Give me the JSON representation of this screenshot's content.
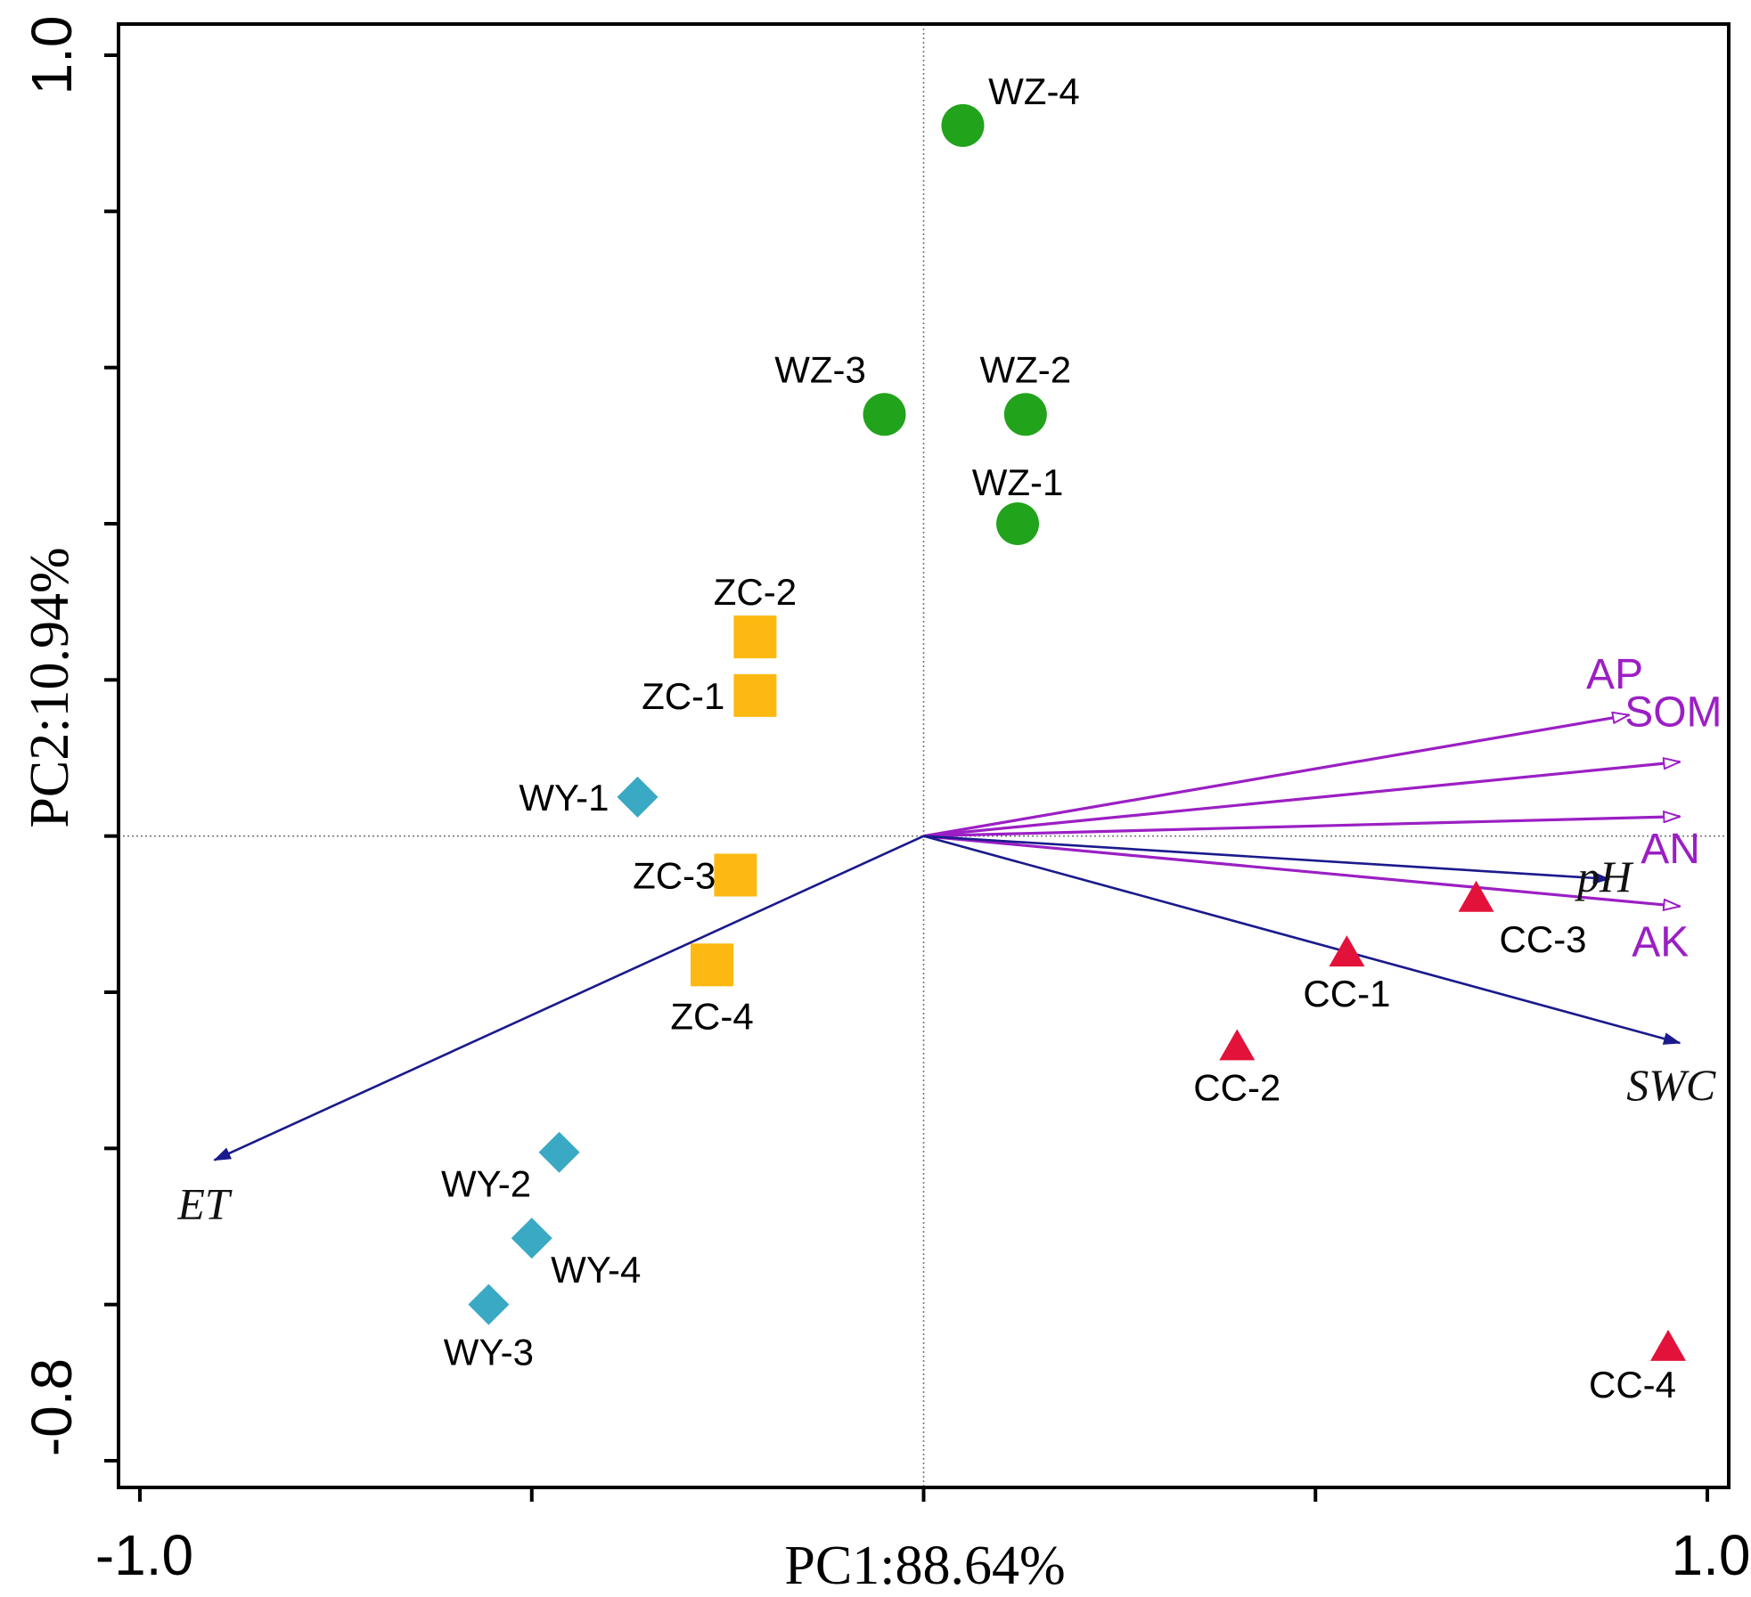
{
  "chart_data": {
    "type": "scatter",
    "subtype": "PCA biplot",
    "title": "",
    "xlabel": "PC1:88.64%",
    "ylabel": "PC2:10.94%",
    "xlim": [
      -1.0,
      1.0
    ],
    "ylim": [
      -0.8,
      1.0
    ],
    "x_tick_labels": [
      "-1.0",
      "1.0"
    ],
    "y_tick_labels": [
      "1.0",
      "-0.8"
    ],
    "x_ticks": [
      -1.0,
      -0.5,
      0.0,
      0.5,
      1.0
    ],
    "y_ticks": [
      -0.8,
      -0.6,
      -0.4,
      -0.2,
      0.0,
      0.2,
      0.4,
      0.6,
      0.8,
      1.0
    ],
    "reference_lines": {
      "x": 0,
      "y": 0
    },
    "colors": {
      "WZ": "#22a31c",
      "ZC": "#fdb911",
      "WY": "#3aa9c4",
      "CC": "#e3123a",
      "soil_arrow": "#9b1fc4",
      "phys_arrow": "#1a1a8c"
    },
    "series": [
      {
        "name": "WZ",
        "marker": "circle",
        "points": [
          {
            "label": "WZ-1",
            "x": 0.12,
            "y": 0.4
          },
          {
            "label": "WZ-2",
            "x": 0.13,
            "y": 0.54
          },
          {
            "label": "WZ-3",
            "x": -0.05,
            "y": 0.54
          },
          {
            "label": "WZ-4",
            "x": 0.05,
            "y": 0.91
          }
        ]
      },
      {
        "name": "ZC",
        "marker": "square",
        "points": [
          {
            "label": "ZC-1",
            "x": -0.215,
            "y": 0.18
          },
          {
            "label": "ZC-2",
            "x": -0.215,
            "y": 0.255
          },
          {
            "label": "ZC-3",
            "x": -0.24,
            "y": -0.05
          },
          {
            "label": "ZC-4",
            "x": -0.27,
            "y": -0.165
          }
        ]
      },
      {
        "name": "WY",
        "marker": "diamond",
        "points": [
          {
            "label": "WY-1",
            "x": -0.365,
            "y": 0.05
          },
          {
            "label": "WY-2",
            "x": -0.465,
            "y": -0.405
          },
          {
            "label": "WY-3",
            "x": -0.555,
            "y": -0.6
          },
          {
            "label": "WY-4",
            "x": -0.5,
            "y": -0.515
          }
        ]
      },
      {
        "name": "CC",
        "marker": "triangle",
        "points": [
          {
            "label": "CC-1",
            "x": 0.54,
            "y": -0.15
          },
          {
            "label": "CC-2",
            "x": 0.4,
            "y": -0.27
          },
          {
            "label": "CC-3",
            "x": 0.705,
            "y": -0.08
          },
          {
            "label": "CC-4",
            "x": 0.95,
            "y": -0.655
          }
        ]
      }
    ],
    "vectors": [
      {
        "label": "AP",
        "group": "soil",
        "x": 0.9,
        "y": 0.155
      },
      {
        "label": "SOM",
        "group": "soil",
        "x": 0.965,
        "y": 0.095
      },
      {
        "label": "AN",
        "group": "soil",
        "x": 0.965,
        "y": 0.025
      },
      {
        "label": "AK",
        "group": "soil",
        "x": 0.965,
        "y": -0.09
      },
      {
        "label": "pH",
        "group": "phys",
        "x": 0.875,
        "y": -0.055
      },
      {
        "label": "SWC",
        "group": "phys",
        "x": 0.965,
        "y": -0.265
      },
      {
        "label": "ET",
        "group": "phys",
        "x": -0.905,
        "y": -0.415
      }
    ]
  }
}
